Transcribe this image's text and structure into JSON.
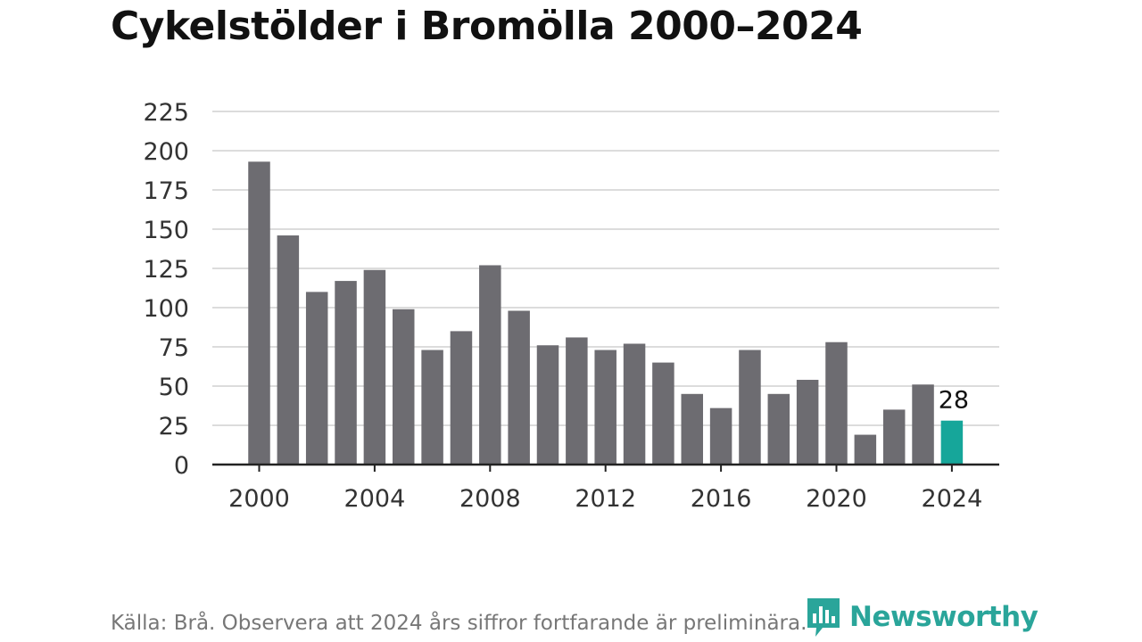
{
  "title": "Cykelstölder i Bromölla 2000–2024",
  "source": "Källa: Brå. Observera att 2024 års siffror fortfarande är preliminära.",
  "brand": {
    "name": "Newsworthy",
    "icon": "newsworthy-logo-icon",
    "color": "#2aa59a"
  },
  "colors": {
    "bar": "#6d6c71",
    "highlight": "#16a69a",
    "grid": "#dcdcdc",
    "axis": "#222222",
    "text": "#333333"
  },
  "chart_data": {
    "type": "bar",
    "title": "Cykelstölder i Bromölla 2000–2024",
    "xlabel": "",
    "ylabel": "",
    "x": [
      2000,
      2001,
      2002,
      2003,
      2004,
      2005,
      2006,
      2007,
      2008,
      2009,
      2010,
      2011,
      2012,
      2013,
      2014,
      2015,
      2016,
      2017,
      2018,
      2019,
      2020,
      2021,
      2022,
      2023,
      2024
    ],
    "values": [
      193,
      146,
      110,
      117,
      124,
      99,
      73,
      85,
      127,
      98,
      76,
      81,
      73,
      77,
      65,
      45,
      36,
      73,
      45,
      54,
      78,
      19,
      35,
      51,
      28
    ],
    "highlight_index": 24,
    "data_labels": [
      {
        "index": 24,
        "text": "28"
      }
    ],
    "x_ticks": [
      2000,
      2004,
      2008,
      2012,
      2016,
      2020,
      2024
    ],
    "y_ticks": [
      0,
      25,
      50,
      75,
      100,
      125,
      150,
      175,
      200,
      225
    ],
    "ylim": [
      0,
      225
    ],
    "grid": true,
    "legend": "none"
  }
}
